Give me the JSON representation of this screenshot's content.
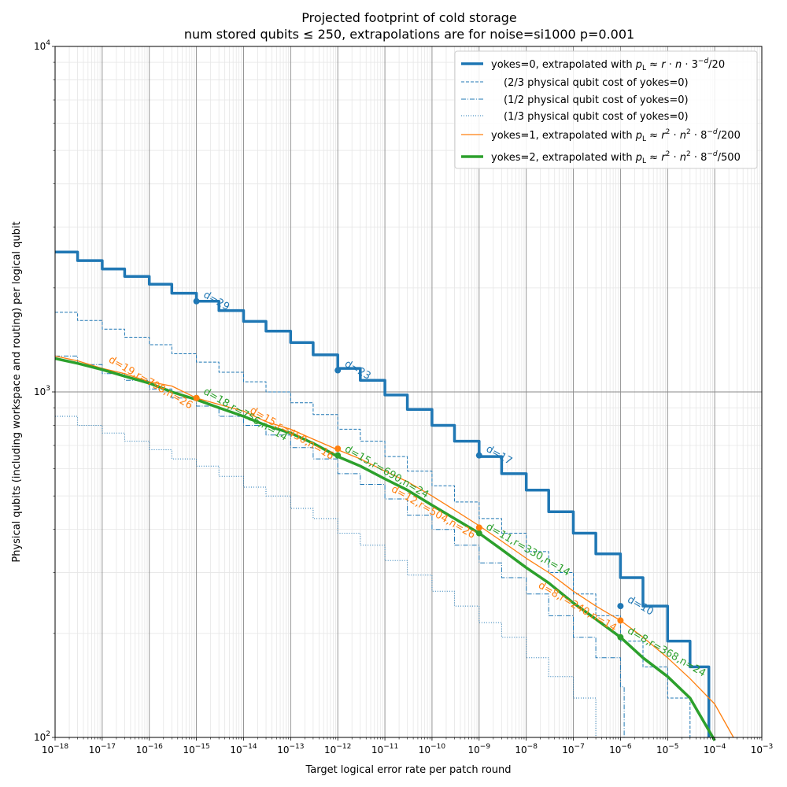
{
  "chart_data": {
    "type": "line",
    "title": "Projected footprint of cold storage",
    "subtitle": "num stored qubits ≤ 250, extrapolations are for noise=si1000 p=0.001",
    "xlabel": "Target logical error rate per patch round",
    "ylabel": "Physical qubits (including workspace and routing) per logical qubit",
    "xscale": "log",
    "yscale": "log",
    "xlim": [
      1e-18,
      0.001
    ],
    "ylim": [
      100,
      10000
    ],
    "grid": true,
    "legend_position": "top-right",
    "x_tick_labels": [
      {
        "base": "10",
        "exp": "−18"
      },
      {
        "base": "10",
        "exp": "−17"
      },
      {
        "base": "10",
        "exp": "−16"
      },
      {
        "base": "10",
        "exp": "−15"
      },
      {
        "base": "10",
        "exp": "−14"
      },
      {
        "base": "10",
        "exp": "−13"
      },
      {
        "base": "10",
        "exp": "−12"
      },
      {
        "base": "10",
        "exp": "−11"
      },
      {
        "base": "10",
        "exp": "−10"
      },
      {
        "base": "10",
        "exp": "−9"
      },
      {
        "base": "10",
        "exp": "−8"
      },
      {
        "base": "10",
        "exp": "−7"
      },
      {
        "base": "10",
        "exp": "−6"
      },
      {
        "base": "10",
        "exp": "−5"
      },
      {
        "base": "10",
        "exp": "−4"
      },
      {
        "base": "10",
        "exp": "−3"
      }
    ],
    "y_tick_labels": [
      {
        "base": "10",
        "exp": "2"
      },
      {
        "base": "10",
        "exp": "3"
      },
      {
        "base": "10",
        "exp": "4"
      }
    ],
    "legend": [
      {
        "series": 0,
        "pre": "yokes=0, extrapolated with ",
        "formula": "rn3",
        "post": "/20"
      },
      {
        "series": 1,
        "text": "(2/3 physical qubit cost of yokes=0)"
      },
      {
        "series": 2,
        "text": "(1/2 physical qubit cost of yokes=0)"
      },
      {
        "series": 3,
        "text": "(1/3 physical qubit cost of yokes=0)"
      },
      {
        "series": 4,
        "pre": "yokes=1, extrapolated with ",
        "formula": "r2n28",
        "post": "/200"
      },
      {
        "series": 5,
        "pre": "yokes=2, extrapolated with ",
        "formula": "r2n28",
        "post": "/500"
      }
    ],
    "series": [
      {
        "color": "#1f77b4",
        "width": 3.5,
        "dash": "",
        "style": "step",
        "x": [
          1e-18,
          3e-18,
          1e-17,
          3e-17,
          1e-16,
          3e-16,
          1e-15,
          3e-15,
          1e-14,
          3e-14,
          1e-13,
          3e-13,
          1e-12,
          3e-12,
          1e-11,
          3e-11,
          1e-10,
          3e-10,
          1e-09,
          3e-09,
          1e-08,
          3e-08,
          1e-07,
          3e-07,
          1e-06,
          3e-06,
          1e-05,
          3e-05,
          7.5e-05
        ],
        "y": [
          2540,
          2400,
          2270,
          2160,
          2050,
          1930,
          1830,
          1720,
          1600,
          1500,
          1390,
          1280,
          1170,
          1080,
          980,
          890,
          800,
          720,
          650,
          580,
          520,
          450,
          390,
          340,
          290,
          240,
          190,
          160,
          125
        ]
      },
      {
        "color": "#1f77b4",
        "width": 1,
        "dash": "4,2",
        "style": "step",
        "x": [
          1e-18,
          3e-18,
          1e-17,
          3e-17,
          1e-16,
          3e-16,
          1e-15,
          3e-15,
          1e-14,
          3e-14,
          1e-13,
          3e-13,
          1e-12,
          3e-12,
          1e-11,
          3e-11,
          1e-10,
          3e-10,
          1e-09,
          3e-09,
          1e-08,
          3e-08,
          1e-07,
          3e-07,
          1e-06,
          3e-06,
          1e-05,
          3e-05
        ],
        "y": [
          1700,
          1610,
          1520,
          1440,
          1370,
          1290,
          1220,
          1140,
          1070,
          1000,
          930,
          860,
          780,
          720,
          650,
          590,
          535,
          480,
          430,
          390,
          345,
          300,
          260,
          225,
          190,
          160,
          130,
          106
        ]
      },
      {
        "color": "#1f77b4",
        "width": 1,
        "dash": "6,2,1,2",
        "style": "step",
        "x": [
          1e-18,
          3e-18,
          1e-17,
          3e-17,
          1e-16,
          3e-16,
          1e-15,
          3e-15,
          1e-14,
          3e-14,
          1e-13,
          3e-13,
          1e-12,
          3e-12,
          1e-11,
          3e-11,
          1e-10,
          3e-10,
          1e-09,
          3e-09,
          1e-08,
          3e-08,
          1e-07,
          3e-07,
          1e-06,
          1.2e-06
        ],
        "y": [
          1270,
          1200,
          1130,
          1080,
          1020,
          960,
          910,
          850,
          800,
          750,
          690,
          640,
          580,
          540,
          490,
          440,
          400,
          360,
          320,
          290,
          260,
          225,
          195,
          170,
          140,
          100
        ]
      },
      {
        "color": "#1f77b4",
        "width": 1,
        "dash": "1,2",
        "style": "step",
        "x": [
          1e-18,
          3e-18,
          1e-17,
          3e-17,
          1e-16,
          3e-16,
          1e-15,
          3e-15,
          1e-14,
          3e-14,
          1e-13,
          3e-13,
          1e-12,
          3e-12,
          1e-11,
          3e-11,
          1e-10,
          3e-10,
          1e-09,
          3e-09,
          1e-08,
          3e-08,
          1e-07,
          3e-07
        ],
        "y": [
          850,
          800,
          760,
          720,
          680,
          640,
          610,
          570,
          530,
          500,
          460,
          430,
          390,
          360,
          325,
          295,
          265,
          240,
          215,
          195,
          170,
          150,
          130,
          110
        ]
      },
      {
        "color": "#ff7f0e",
        "width": 1.3,
        "dash": "",
        "style": "line",
        "x": [
          1e-18,
          3e-18,
          1e-17,
          3e-17,
          1e-16,
          3e-16,
          1e-15,
          3e-15,
          1e-14,
          3e-14,
          1e-13,
          3e-13,
          1e-12,
          3e-12,
          1e-11,
          3e-11,
          1e-10,
          3e-10,
          1e-09,
          3e-09,
          1e-08,
          3e-08,
          1e-07,
          3e-07,
          1e-06,
          3e-06,
          1e-05,
          3e-05,
          0.0001,
          0.00025
        ],
        "y": [
          1270,
          1230,
          1170,
          1130,
          1070,
          1040,
          960,
          920,
          880,
          820,
          780,
          730,
          680,
          640,
          590,
          550,
          500,
          455,
          410,
          370,
          330,
          300,
          265,
          240,
          218,
          195,
          170,
          148,
          125,
          100
        ]
      },
      {
        "color": "#2ca02c",
        "width": 3.5,
        "dash": "",
        "style": "line",
        "x": [
          1e-18,
          3e-18,
          1e-17,
          3e-17,
          1e-16,
          3e-16,
          1e-15,
          3e-15,
          1e-14,
          3e-14,
          1e-13,
          3e-13,
          1e-12,
          3e-12,
          1e-11,
          3e-11,
          1e-10,
          3e-10,
          1e-09,
          3e-09,
          1e-08,
          3e-08,
          1e-07,
          3e-07,
          1e-06,
          3e-06,
          1e-05,
          3e-05,
          0.0001
        ],
        "y": [
          1250,
          1210,
          1160,
          1110,
          1060,
          1000,
          950,
          900,
          850,
          800,
          760,
          710,
          650,
          610,
          560,
          520,
          470,
          430,
          390,
          350,
          310,
          280,
          245,
          220,
          195,
          170,
          150,
          130,
          98
        ]
      }
    ],
    "annotations": [
      {
        "x": 1e-15,
        "y": 1830,
        "text": "d=29",
        "color": "#1f77b4",
        "marker": true
      },
      {
        "x": 1e-12,
        "y": 1155,
        "text": "d=23",
        "color": "#1f77b4",
        "marker": true
      },
      {
        "x": 1e-09,
        "y": 655,
        "text": "d=17",
        "color": "#1f77b4",
        "marker": true
      },
      {
        "x": 1e-06,
        "y": 240,
        "text": "d=10",
        "color": "#1f77b4",
        "marker": true
      },
      {
        "x": 1e-15,
        "y": 960,
        "text": "d=18,r=756,n=14",
        "color": "#2ca02c",
        "marker": true
      },
      {
        "x": 1e-12,
        "y": 655,
        "text": "d=15,r=690,n=24",
        "color": "#2ca02c",
        "marker": true
      },
      {
        "x": 1e-09,
        "y": 390,
        "text": "d=11,r=330,n=14",
        "color": "#2ca02c",
        "marker": true
      },
      {
        "x": 1e-06,
        "y": 195,
        "text": "d=8,r=368,n=24",
        "color": "#2ca02c",
        "marker": true
      },
      {
        "x": 1e-15,
        "y": 960,
        "text": "d=19,r=798,n=26",
        "color": "#ff7f0e",
        "marker": true
      },
      {
        "x": 1e-12,
        "y": 685,
        "text": "d=15,r=450,n=16",
        "color": "#ff7f0e",
        "marker": true
      },
      {
        "x": 1e-09,
        "y": 405,
        "text": "d=12,r=504,n=26",
        "color": "#ff7f0e",
        "marker": true
      },
      {
        "x": 1e-06,
        "y": 218,
        "text": "d=8,r=240,n=14",
        "color": "#ff7f0e",
        "marker": true
      }
    ]
  }
}
